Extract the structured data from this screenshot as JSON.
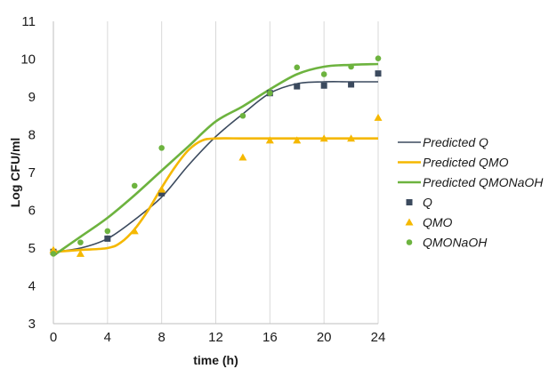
{
  "chart_data": {
    "type": "scatter",
    "xlabel": "time (h)",
    "ylabel": "Log CFU/ml",
    "xlim": [
      0,
      24
    ],
    "ylim": [
      3,
      11
    ],
    "xticks": [
      0,
      4,
      8,
      12,
      16,
      20,
      24
    ],
    "yticks": [
      3,
      4,
      5,
      6,
      7,
      8,
      9,
      10,
      11
    ],
    "grid": {
      "vertical": true,
      "horizontal": false
    },
    "legend_position": "right",
    "lines": [
      {
        "name": "Predicted Q",
        "color": "#3b4a5e",
        "x": [
          0,
          2,
          4,
          6,
          8,
          10,
          12,
          14,
          16,
          18,
          20,
          22,
          24
        ],
        "y": [
          4.9,
          5.0,
          5.25,
          5.75,
          6.35,
          7.2,
          7.95,
          8.55,
          9.1,
          9.35,
          9.4,
          9.4,
          9.4
        ]
      },
      {
        "name": "Predicted QMO",
        "color": "#f5b800",
        "x": [
          0,
          2,
          4,
          5,
          6,
          7,
          8,
          9,
          10,
          11,
          12,
          14,
          16,
          18,
          20,
          22,
          24
        ],
        "y": [
          4.9,
          4.95,
          5.0,
          5.15,
          5.5,
          6.0,
          6.6,
          7.15,
          7.6,
          7.85,
          7.9,
          7.9,
          7.9,
          7.9,
          7.9,
          7.9,
          7.9
        ]
      },
      {
        "name": "Predicted QMONaOH",
        "color": "#6db33f",
        "x": [
          0,
          2,
          4,
          6,
          8,
          10,
          12,
          14,
          16,
          18,
          20,
          22,
          24
        ],
        "y": [
          4.8,
          5.3,
          5.8,
          6.4,
          7.05,
          7.7,
          8.35,
          8.75,
          9.2,
          9.6,
          9.8,
          9.85,
          9.87
        ]
      }
    ],
    "series": [
      {
        "name": "Q",
        "color": "#3b4a5e",
        "marker": "square",
        "x": [
          0,
          4,
          8,
          16,
          18,
          20,
          22,
          24
        ],
        "y": [
          4.9,
          5.25,
          6.45,
          9.1,
          9.28,
          9.3,
          9.33,
          9.62
        ]
      },
      {
        "name": "QMO",
        "color": "#f5b800",
        "marker": "triangle",
        "x": [
          0,
          2,
          6,
          8,
          14,
          16,
          18,
          20,
          22,
          24
        ],
        "y": [
          4.95,
          4.85,
          5.45,
          6.55,
          7.4,
          7.85,
          7.85,
          7.9,
          7.9,
          8.45
        ]
      },
      {
        "name": "QMONaOH",
        "color": "#6db33f",
        "marker": "circle",
        "x": [
          0,
          2,
          4,
          6,
          8,
          14,
          16,
          18,
          20,
          22,
          24
        ],
        "y": [
          4.85,
          5.15,
          5.45,
          6.65,
          7.65,
          8.5,
          9.1,
          9.78,
          9.6,
          9.8,
          10.02
        ]
      }
    ]
  }
}
